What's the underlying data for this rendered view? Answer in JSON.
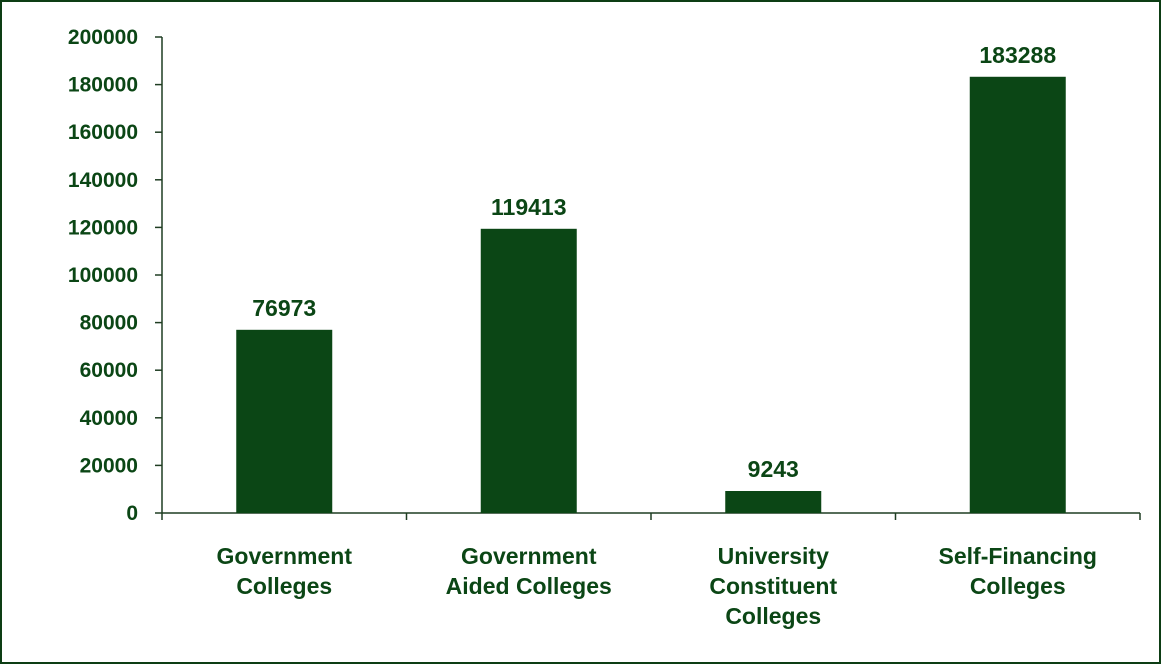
{
  "colors": {
    "bar": "#0b4615",
    "text": "#0b4615",
    "axis": "#1f3d22",
    "frame": "#0d3d14"
  },
  "chart_data": {
    "type": "bar",
    "title": "",
    "xlabel": "",
    "ylabel": "",
    "categories": [
      [
        "Government",
        "Colleges"
      ],
      [
        "Government",
        "Aided Colleges"
      ],
      [
        "University",
        "Constituent",
        "Colleges"
      ],
      [
        "Self-Financing",
        "Colleges"
      ]
    ],
    "values": [
      76973,
      119413,
      9243,
      183288
    ],
    "data_labels": [
      "76973",
      "119413",
      "9243",
      "183288"
    ],
    "ylim": [
      0,
      200000
    ],
    "yticks": [
      0,
      20000,
      40000,
      60000,
      80000,
      100000,
      120000,
      140000,
      160000,
      180000,
      200000
    ],
    "ytick_labels": [
      "0",
      "20000",
      "40000",
      "60000",
      "80000",
      "100000",
      "120000",
      "140000",
      "160000",
      "180000",
      "200000"
    ],
    "grid": false,
    "legend": "none"
  }
}
